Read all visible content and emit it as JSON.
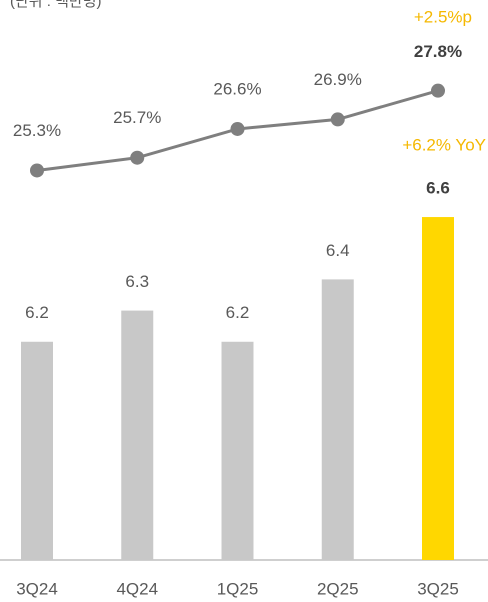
{
  "chart_data": {
    "type": "bar_line",
    "unit_label": "(단위 : 백만명)",
    "categories": [
      "3Q24",
      "4Q24",
      "1Q25",
      "2Q25",
      "3Q25"
    ],
    "series": [
      {
        "type": "bar",
        "values": [
          6.2,
          6.3,
          6.2,
          6.4,
          6.6
        ],
        "colors": [
          "#c8c8c8",
          "#c8c8c8",
          "#c8c8c8",
          "#c8c8c8",
          "#ffd700"
        ]
      },
      {
        "type": "line",
        "axis": "y2",
        "color": "#7f7f7f",
        "values": [
          25.3,
          25.7,
          26.6,
          26.9,
          27.8
        ],
        "value_labels": [
          "25.3%",
          "25.7%",
          "26.6%",
          "26.9%",
          "27.8%"
        ]
      }
    ],
    "ylim": [
      5.5,
      7.2
    ],
    "y2lim": [
      13.1,
      29.7
    ],
    "annotations": [
      "+2.5%p",
      "+6.2% YoY"
    ],
    "annotation_color": "#f5b800"
  }
}
